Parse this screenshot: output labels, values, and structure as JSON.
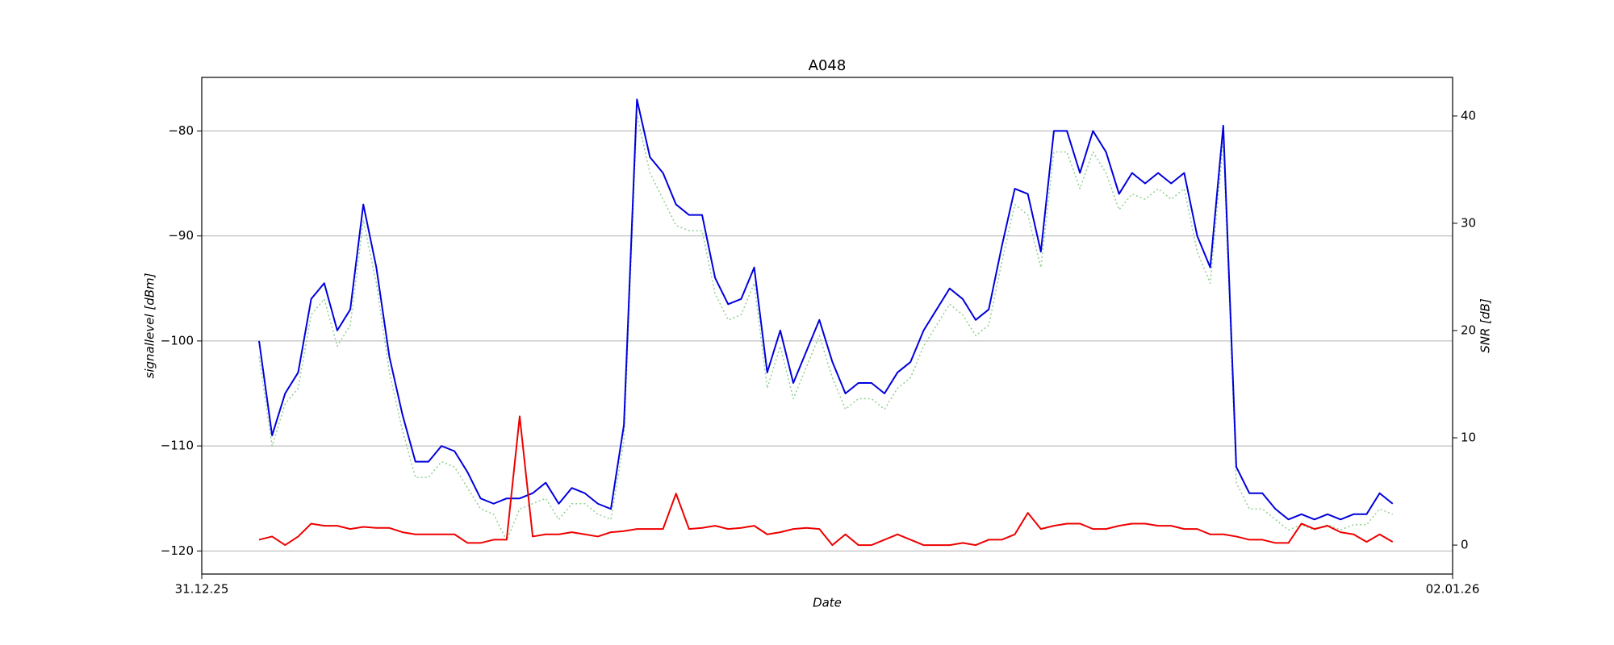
{
  "chart_data": {
    "type": "line",
    "title": "A048",
    "xlabel": "Date",
    "ylabel": "signallevel [dBm]",
    "y2label": "SNR [dB]",
    "xlim": [
      0,
      48
    ],
    "xticks": [
      {
        "value": 0,
        "label": "31.12.25"
      },
      {
        "value": 48,
        "label": "02.01.26"
      }
    ],
    "ylim": [
      -122.2,
      -74.9
    ],
    "yticks": [
      {
        "value": -120,
        "label": "−120"
      },
      {
        "value": -110,
        "label": "−110"
      },
      {
        "value": -100,
        "label": "−100"
      },
      {
        "value": -90,
        "label": "−90"
      },
      {
        "value": -80,
        "label": "−80"
      }
    ],
    "y2lim": [
      -2.7,
      43.6
    ],
    "y2ticks": [
      0,
      10,
      20,
      30,
      40
    ],
    "grid": true,
    "x": [
      2.2,
      2.7,
      3.2,
      3.7,
      4.2,
      4.7,
      5.2,
      5.7,
      6.2,
      6.7,
      7.2,
      7.7,
      8.2,
      8.7,
      9.2,
      9.7,
      10.2,
      10.7,
      11.2,
      11.7,
      12.2,
      12.7,
      13.2,
      13.7,
      14.2,
      14.7,
      15.2,
      15.7,
      16.2,
      16.7,
      17.2,
      17.7,
      18.2,
      18.7,
      19.2,
      19.7,
      20.2,
      20.7,
      21.2,
      21.7,
      22.2,
      22.7,
      23.2,
      23.7,
      24.2,
      24.7,
      25.2,
      25.7,
      26.2,
      26.7,
      27.2,
      27.7,
      28.2,
      28.7,
      29.2,
      29.7,
      30.2,
      30.7,
      31.2,
      31.7,
      32.2,
      32.7,
      33.2,
      33.7,
      34.2,
      34.7,
      35.2,
      35.7,
      36.2,
      36.7,
      37.2,
      37.7,
      38.2,
      38.7,
      39.2,
      39.7,
      40.2,
      40.7,
      41.2,
      41.7,
      42.2,
      42.7,
      43.2,
      43.7,
      44.2,
      44.7,
      45.2,
      45.7
    ],
    "series": [
      {
        "color": "#90d090",
        "style": "dotted",
        "axis": "y",
        "values": [
          -101.5,
          -110,
          -106,
          -104.5,
          -97.5,
          -96,
          -100.5,
          -98.5,
          -88.5,
          -94.5,
          -103,
          -108.5,
          -113,
          -113,
          -111.5,
          -112,
          -114,
          -116,
          -116.5,
          -119,
          -116,
          -115.5,
          -115,
          -117,
          -115.5,
          -115.5,
          -116.5,
          -117,
          -109.5,
          -78.5,
          -84,
          -86.5,
          -89,
          -89.5,
          -89.5,
          -95.5,
          -98,
          -97.5,
          -94.5,
          -104.5,
          -100.5,
          -105.5,
          -102.5,
          -99.5,
          -103.5,
          -106.5,
          -105.5,
          -105.5,
          -106.5,
          -104.5,
          -103.5,
          -100.5,
          -98.5,
          -96.5,
          -97.5,
          -99.5,
          -98.5,
          -92.5,
          -87,
          -88,
          -93,
          -82,
          -82,
          -85.5,
          -82,
          -84,
          -87.5,
          -86,
          -86.5,
          -85.5,
          -86.5,
          -85.5,
          -91.5,
          -94.5,
          -81,
          -113.5,
          -116,
          -116,
          -117,
          -118,
          -117.5,
          -118,
          -117.5,
          -118,
          -117.5,
          -117.5,
          -116,
          -116.5
        ]
      },
      {
        "color": "#0000dd",
        "style": "solid",
        "axis": "y",
        "values": [
          -100,
          -109,
          -105,
          -103,
          -96,
          -94.5,
          -99,
          -97,
          -87,
          -93,
          -101.5,
          -107,
          -111.5,
          -111.5,
          -110,
          -110.5,
          -112.5,
          -115,
          -115.5,
          -115,
          -115,
          -114.5,
          -113.5,
          -115.5,
          -114,
          -114.5,
          -115.5,
          -116,
          -108,
          -77,
          -82.5,
          -84,
          -87,
          -88,
          -88,
          -94,
          -96.5,
          -96,
          -93,
          -103,
          -99,
          -104,
          -101,
          -98,
          -102,
          -105,
          -104,
          -104,
          -105,
          -103,
          -102,
          -99,
          -97,
          -95,
          -96,
          -98,
          -97,
          -91,
          -85.5,
          -86,
          -91.5,
          -80,
          -80,
          -84,
          -80,
          -82,
          -86,
          -84,
          -85,
          -84,
          -85,
          -84,
          -90,
          -93,
          -79.5,
          -112,
          -114.5,
          -114.5,
          -116,
          -117,
          -116.5,
          -117,
          -116.5,
          -117,
          -116.5,
          -116.5,
          -114.5,
          -115.5
        ]
      },
      {
        "color": "#ee0000",
        "style": "solid",
        "axis": "y2",
        "values": [
          0.5,
          0.8,
          0,
          0.8,
          2.0,
          1.8,
          1.8,
          1.5,
          1.7,
          1.6,
          1.6,
          1.2,
          1.0,
          1.0,
          1.0,
          1.0,
          0.2,
          0.2,
          0.5,
          0.5,
          12,
          0.8,
          1.0,
          1.0,
          1.2,
          1.0,
          0.8,
          1.2,
          1.3,
          1.5,
          1.5,
          1.5,
          4.8,
          1.5,
          1.6,
          1.8,
          1.5,
          1.6,
          1.8,
          1.0,
          1.2,
          1.5,
          1.6,
          1.5,
          0,
          1.0,
          0,
          0,
          0.5,
          1.0,
          0.5,
          0,
          0,
          0,
          0.2,
          0,
          0.5,
          0.5,
          1.0,
          3.0,
          1.5,
          1.8,
          2.0,
          2.0,
          1.5,
          1.5,
          1.8,
          2.0,
          2.0,
          1.8,
          1.8,
          1.5,
          1.5,
          1.0,
          1.0,
          0.8,
          0.5,
          0.5,
          0.2,
          0.2,
          2.0,
          1.5,
          1.8,
          1.2,
          1.0,
          0.3,
          1.0,
          0.3
        ]
      }
    ]
  }
}
